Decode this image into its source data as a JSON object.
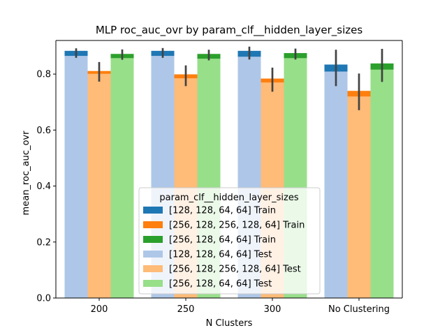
{
  "chart_data": {
    "type": "bar",
    "title": "MLP roc_auc_ovr by param_clf__hidden_layer_sizes",
    "xlabel": "N Clusters",
    "ylabel": "mean_roc_auc_ovr",
    "categories": [
      "200",
      "250",
      "300",
      "No Clustering"
    ],
    "ylim": [
      0,
      0.92
    ],
    "yticks": [
      0.0,
      0.2,
      0.4,
      0.6,
      0.8
    ],
    "ytick_labels": [
      "0.0",
      "0.2",
      "0.4",
      "0.6",
      "0.8"
    ],
    "legend": {
      "title": "param_clf__hidden_layer_sizes",
      "placement": "lower center"
    },
    "series": [
      {
        "name": "[128, 128, 64, 64] Train",
        "color": "#1f77b4",
        "values": [
          0.883,
          0.883,
          0.883,
          0.834
        ],
        "ci_low": [
          0.858,
          0.858,
          0.852,
          0.757
        ],
        "ci_high": [
          0.892,
          0.893,
          0.898,
          0.887
        ]
      },
      {
        "name": "[256, 128, 256, 128, 64] Train",
        "color": "#ff7f0e",
        "values": [
          0.811,
          0.799,
          0.784,
          0.74
        ],
        "ci_low": [
          0.773,
          0.757,
          0.737,
          0.671
        ],
        "ci_high": [
          0.843,
          0.831,
          0.823,
          0.802
        ]
      },
      {
        "name": "[256, 128, 64, 64] Train",
        "color": "#2ca02c",
        "values": [
          0.872,
          0.872,
          0.875,
          0.838
        ],
        "ci_low": [
          0.851,
          0.849,
          0.852,
          0.772
        ],
        "ci_high": [
          0.888,
          0.887,
          0.891,
          0.89
        ]
      },
      {
        "name": "[128, 128, 64, 64] Test",
        "color": "#aec7e8",
        "values": [
          0.865,
          0.865,
          0.862,
          0.809
        ]
      },
      {
        "name": "[256, 128, 256, 128, 64] Test",
        "color": "#ffbb78",
        "values": [
          0.801,
          0.785,
          0.77,
          0.72
        ]
      },
      {
        "name": "[256, 128, 64, 64] Test",
        "color": "#98df8a",
        "values": [
          0.857,
          0.855,
          0.857,
          0.816
        ]
      }
    ]
  }
}
